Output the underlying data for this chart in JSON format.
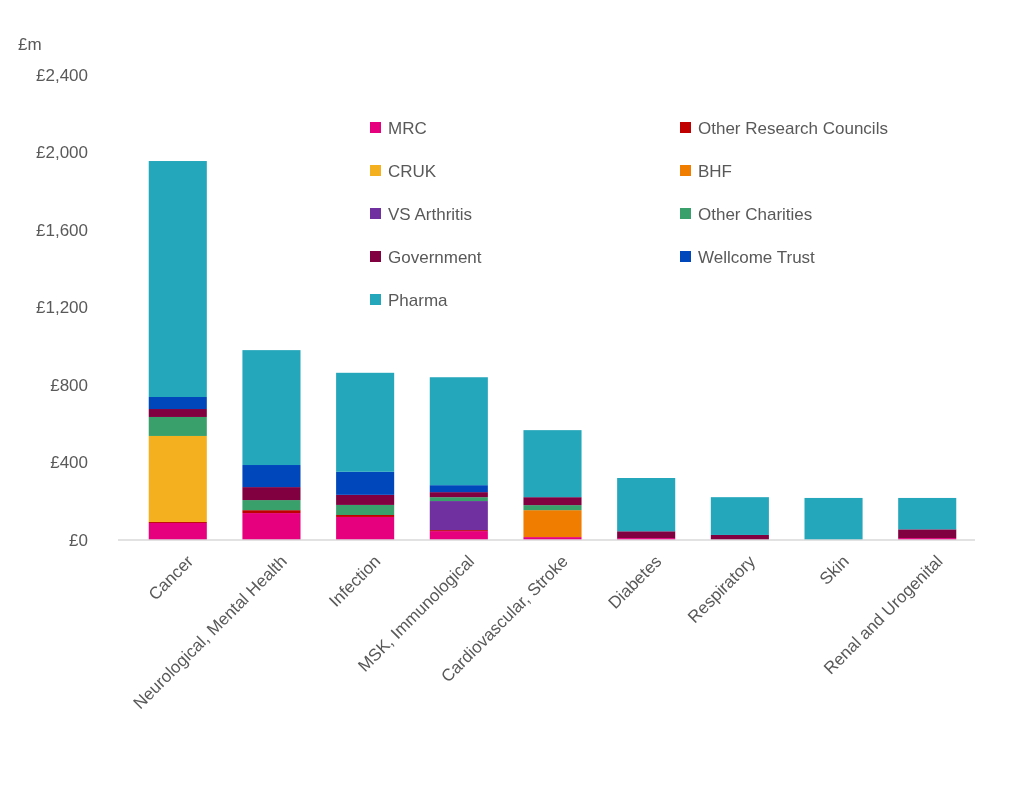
{
  "chart_data": {
    "type": "bar",
    "stacked": true,
    "ylabel": "£m",
    "categories": [
      "Cancer",
      "Neurological, Mental Health",
      "Infection",
      "MSK, Immunological",
      "Cardiovascular, Stroke",
      "Diabetes",
      "Respiratory",
      "Skin",
      "Renal and Urogenital"
    ],
    "ylim": [
      0,
      2400
    ],
    "yticks": [
      {
        "value": 0,
        "label": "£0"
      },
      {
        "value": 400,
        "label": "£400"
      },
      {
        "value": 800,
        "label": "£800"
      },
      {
        "value": 1200,
        "label": "£1,200"
      },
      {
        "value": 1600,
        "label": "£1,600"
      },
      {
        "value": 2000,
        "label": "£2,000"
      },
      {
        "value": 2400,
        "label": "£2,400"
      }
    ],
    "grid": false,
    "legend": "top right",
    "series": [
      {
        "name": "MRC",
        "color": "#e6007e",
        "values": [
          88,
          139,
          119,
          46,
          15,
          10,
          null,
          0,
          10
        ]
      },
      {
        "name": "Other Research Councils",
        "color": "#c00000",
        "values": [
          5,
          15,
          10,
          5,
          0,
          0,
          0,
          0,
          0
        ]
      },
      {
        "name": "CRUK",
        "color": "#f5b01f",
        "values": [
          444,
          0,
          0,
          0,
          0,
          0,
          0,
          0,
          0
        ]
      },
      {
        "name": "BHF",
        "color": "#f07c00",
        "values": [
          0,
          0,
          0,
          0,
          139,
          0,
          0,
          0,
          0
        ]
      },
      {
        "name": "VS Arthritis",
        "color": "#7030a0",
        "values": [
          0,
          0,
          0,
          150,
          0,
          0,
          0,
          0,
          0
        ]
      },
      {
        "name": "Other Charities",
        "color": "#3aa06b",
        "values": [
          98,
          52,
          52,
          20,
          26,
          0,
          0,
          0,
          0
        ]
      },
      {
        "name": "Government",
        "color": "#800040",
        "values": [
          41,
          67,
          52,
          26,
          41,
          35,
          26,
          0,
          45
        ]
      },
      {
        "name": "Wellcome Trust",
        "color": "#0047bb",
        "values": [
          62,
          114,
          119,
          36,
          0,
          0,
          0,
          0,
          0
        ]
      },
      {
        "name": "Pharma",
        "color": "#25a7bb",
        "values": [
          1218,
          593,
          511,
          557,
          346,
          275,
          195,
          217,
          162
        ]
      }
    ]
  }
}
